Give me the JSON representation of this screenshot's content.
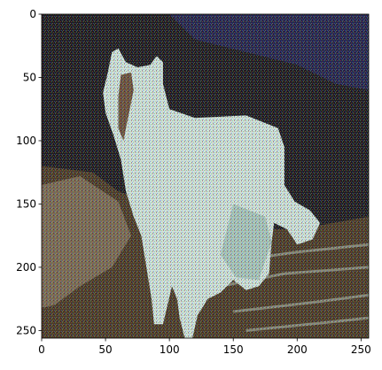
{
  "chart_data": {
    "type": "image",
    "title": "",
    "xlabel": "",
    "ylabel": "",
    "image_size": [
      256,
      256
    ],
    "xlim": [
      0,
      256
    ],
    "ylim": [
      256,
      0
    ],
    "y_inverted": true,
    "xticks": [
      0,
      50,
      100,
      150,
      200,
      250
    ],
    "yticks": [
      0,
      50,
      100,
      150,
      200,
      250
    ],
    "xtick_labels": [
      "0",
      "50",
      "100",
      "150",
      "200",
      "250"
    ],
    "ytick_labels": [
      "0",
      "50",
      "100",
      "150",
      "200",
      "250"
    ],
    "grid": false,
    "legend": "none",
    "image_subject": "white horse",
    "colors": {
      "background_dark": "#1c1a22",
      "sky_blue": "#23244f",
      "horse_white": "#cfe3df",
      "horse_shadow": "#a8c6c0",
      "ground_brown": "#4a3a2a",
      "rock_light": "#8a7a66",
      "noise_red": "#c04a4a",
      "noise_green": "#4ab04a",
      "noise_blue": "#4a6ad0"
    }
  }
}
